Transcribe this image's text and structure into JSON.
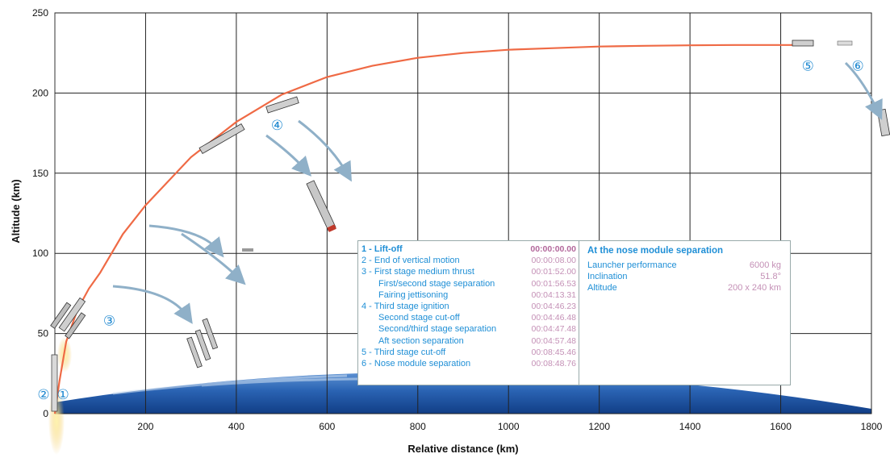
{
  "chart_data": {
    "type": "line",
    "xlabel": "Relative distance (km)",
    "ylabel": "Altitude (km)",
    "xlim": [
      0,
      1800
    ],
    "ylim": [
      0,
      250
    ],
    "x_ticks": [
      "200",
      "400",
      "600",
      "800",
      "1000",
      "1200",
      "1400",
      "1600",
      "1800"
    ],
    "y_ticks": [
      "0",
      "50",
      "100",
      "150",
      "200",
      "250"
    ],
    "grid": true,
    "series": [
      {
        "color": "#ef6a45",
        "x": [
          0,
          10,
          25,
          50,
          75,
          100,
          150,
          200,
          300,
          400,
          500,
          600,
          700,
          800,
          900,
          1000,
          1100,
          1200,
          1300,
          1400,
          1500,
          1600,
          1650
        ],
        "y": [
          0,
          20,
          45,
          65,
          78,
          88,
          112,
          130,
          160,
          182,
          199,
          210,
          217,
          222,
          225,
          227,
          228,
          229,
          229.5,
          229.8,
          230,
          230,
          230
        ]
      }
    ],
    "stage_markers": [
      {
        "label": "①",
        "x": 18,
        "y": 12
      },
      {
        "label": "②",
        "x": -25,
        "y": 12
      },
      {
        "label": "③",
        "x": 120,
        "y": 58
      },
      {
        "label": "④",
        "x": 490,
        "y": 180
      },
      {
        "label": "⑤",
        "x": 1660,
        "y": 217
      },
      {
        "label": "⑥",
        "x": 1770,
        "y": 217
      }
    ]
  },
  "legend": {
    "events": [
      {
        "label": "1 - Lift-off",
        "time": "00:00:00.00",
        "sub": false,
        "bold": true
      },
      {
        "label": "2 - End of vertical motion",
        "time": "00:00:08.00",
        "sub": false,
        "bold": false
      },
      {
        "label": "3 - First stage medium thrust",
        "time": "00:01:52.00",
        "sub": false,
        "bold": false
      },
      {
        "label": "First/second stage separation",
        "time": "00:01:56.53",
        "sub": true,
        "bold": false
      },
      {
        "label": "Fairing jettisoning",
        "time": "00:04:13.31",
        "sub": true,
        "bold": false
      },
      {
        "label": "4 - Third stage ignition",
        "time": "00:04:46.23",
        "sub": false,
        "bold": false
      },
      {
        "label": "Second stage cut-off",
        "time": "00:04:46.48",
        "sub": true,
        "bold": false
      },
      {
        "label": "Second/third stage separation",
        "time": "00:04:47.48",
        "sub": true,
        "bold": false
      },
      {
        "label": "Aft section separation",
        "time": "00:04:57.48",
        "sub": true,
        "bold": false
      },
      {
        "label": "5 - Third stage cut-off",
        "time": "00:08:45.46",
        "sub": false,
        "bold": false
      },
      {
        "label": "6 - Nose module separation",
        "time": "00:08:48.76",
        "sub": false,
        "bold": false
      }
    ],
    "separation": {
      "title": "At the nose module separation",
      "rows": [
        {
          "label": "Launcher performance",
          "value": "6000 kg"
        },
        {
          "label": "Inclination",
          "value": "51.8°"
        },
        {
          "label": "Altitude",
          "value": "200 x 240 km"
        }
      ]
    }
  },
  "colors": {
    "trajectory": "#ef6a45",
    "marker": "#1e88d0",
    "label_blue": "#1f8fd6",
    "time_pink": "#c490b6"
  }
}
